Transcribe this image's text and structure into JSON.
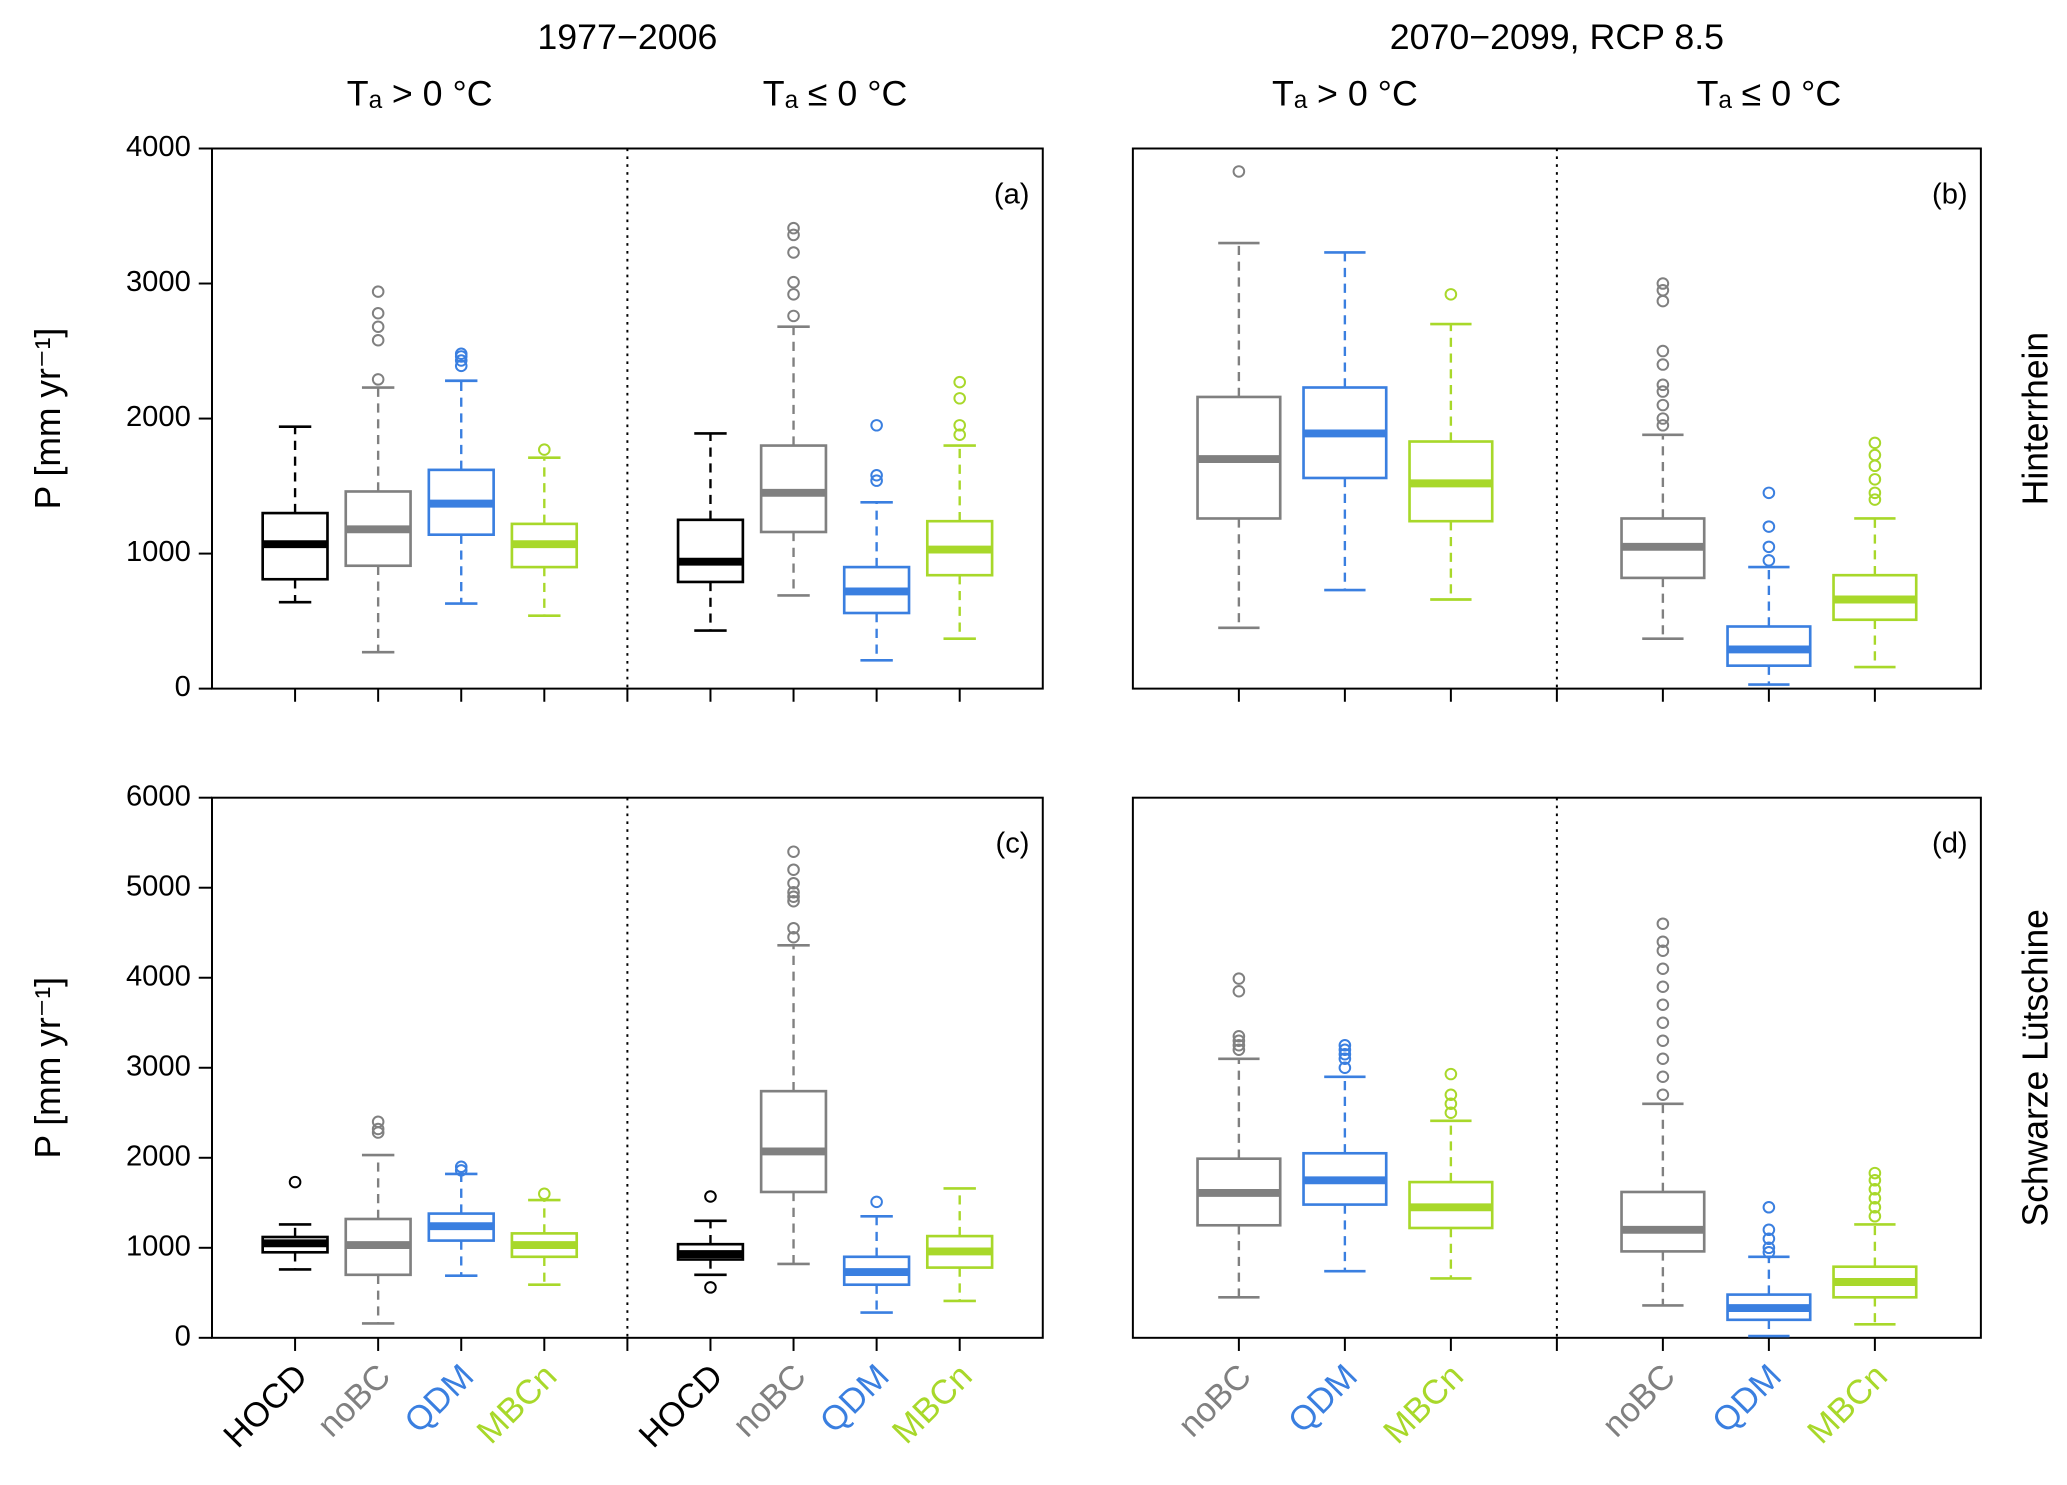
{
  "chart_data": [
    {
      "type": "box",
      "title": "1977−2006",
      "ylabel": "P [mm yr⁻¹]",
      "panel_label": "(a)",
      "ylim": [
        0,
        4000
      ],
      "yticks": [
        0,
        1000,
        2000,
        3000,
        4000
      ],
      "groups": [
        {
          "label": "Tₐ > 0 °C",
          "boxes": [
            {
              "color": "#000000",
              "whisker_low": 640,
              "q1": 810,
              "median": 1070,
              "q3": 1300,
              "whisker_high": 1940,
              "outliers": []
            },
            {
              "color": "#808080",
              "whisker_low": 270,
              "q1": 910,
              "median": 1180,
              "q3": 1460,
              "whisker_high": 2230,
              "outliers": [
                2290,
                2580,
                2680,
                2780,
                2940
              ]
            },
            {
              "color": "#3a7fe0",
              "whisker_low": 630,
              "q1": 1140,
              "median": 1370,
              "q3": 1620,
              "whisker_high": 2280,
              "outliers": [
                2390,
                2430,
                2460,
                2480
              ]
            },
            {
              "color": "#a8d82a",
              "whisker_low": 540,
              "q1": 900,
              "median": 1070,
              "q3": 1220,
              "whisker_high": 1710,
              "outliers": [
                1770
              ]
            }
          ]
        },
        {
          "label": "Tₐ ≤ 0 °C",
          "boxes": [
            {
              "color": "#000000",
              "whisker_low": 430,
              "q1": 790,
              "median": 940,
              "q3": 1250,
              "whisker_high": 1890,
              "outliers": []
            },
            {
              "color": "#808080",
              "whisker_low": 690,
              "q1": 1160,
              "median": 1450,
              "q3": 1800,
              "whisker_high": 2680,
              "outliers": [
                2760,
                2920,
                3010,
                3230,
                3360,
                3410
              ]
            },
            {
              "color": "#3a7fe0",
              "whisker_low": 210,
              "q1": 560,
              "median": 720,
              "q3": 900,
              "whisker_high": 1380,
              "outliers": [
                1540,
                1580,
                1950
              ]
            },
            {
              "color": "#a8d82a",
              "whisker_low": 370,
              "q1": 840,
              "median": 1030,
              "q3": 1240,
              "whisker_high": 1800,
              "outliers": [
                1880,
                1950,
                2150,
                2270
              ]
            }
          ]
        }
      ]
    },
    {
      "type": "box",
      "title": "2070−2099, RCP 8.5",
      "row_label": "Hinterrhein",
      "panel_label": "(b)",
      "ylim": [
        0,
        4000
      ],
      "groups": [
        {
          "label": "Tₐ > 0 °C",
          "boxes": [
            {
              "color": "#808080",
              "whisker_low": 450,
              "q1": 1260,
              "median": 1700,
              "q3": 2160,
              "whisker_high": 3300,
              "outliers": [
                3830
              ]
            },
            {
              "color": "#3a7fe0",
              "whisker_low": 730,
              "q1": 1560,
              "median": 1890,
              "q3": 2230,
              "whisker_high": 3230,
              "outliers": []
            },
            {
              "color": "#a8d82a",
              "whisker_low": 660,
              "q1": 1240,
              "median": 1520,
              "q3": 1830,
              "whisker_high": 2700,
              "outliers": [
                2920
              ]
            }
          ]
        },
        {
          "label": "Tₐ ≤ 0 °C",
          "boxes": [
            {
              "color": "#808080",
              "whisker_low": 370,
              "q1": 820,
              "median": 1050,
              "q3": 1260,
              "whisker_high": 1880,
              "outliers": [
                1950,
                2000,
                2100,
                2200,
                2250,
                2400,
                2500,
                2870,
                2950,
                3000
              ]
            },
            {
              "color": "#3a7fe0",
              "whisker_low": 30,
              "q1": 170,
              "median": 290,
              "q3": 460,
              "whisker_high": 900,
              "outliers": [
                950,
                1050,
                1200,
                1450
              ]
            },
            {
              "color": "#a8d82a",
              "whisker_low": 160,
              "q1": 510,
              "median": 660,
              "q3": 840,
              "whisker_high": 1260,
              "outliers": [
                1400,
                1450,
                1550,
                1650,
                1730,
                1820
              ]
            }
          ]
        }
      ]
    },
    {
      "type": "box",
      "ylabel": "P [mm yr⁻¹]",
      "panel_label": "(c)",
      "ylim": [
        0,
        6000
      ],
      "yticks": [
        0,
        1000,
        2000,
        3000,
        4000,
        5000,
        6000
      ],
      "groups": [
        {
          "boxes": [
            {
              "name": "HOCD",
              "color": "#000000",
              "whisker_low": 760,
              "q1": 950,
              "median": 1050,
              "q3": 1120,
              "whisker_high": 1260,
              "outliers": [
                1730
              ]
            },
            {
              "name": "noBC",
              "color": "#808080",
              "whisker_low": 160,
              "q1": 700,
              "median": 1030,
              "q3": 1320,
              "whisker_high": 2030,
              "outliers": [
                2280,
                2320,
                2400
              ]
            },
            {
              "name": "QDM",
              "color": "#3a7fe0",
              "whisker_low": 690,
              "q1": 1080,
              "median": 1240,
              "q3": 1380,
              "whisker_high": 1820,
              "outliers": [
                1860,
                1900
              ]
            },
            {
              "name": "MBCn",
              "color": "#a8d82a",
              "whisker_low": 590,
              "q1": 900,
              "median": 1030,
              "q3": 1160,
              "whisker_high": 1530,
              "outliers": [
                1600
              ]
            }
          ]
        },
        {
          "boxes": [
            {
              "name": "HOCD",
              "color": "#000000",
              "whisker_low": 700,
              "q1": 870,
              "median": 930,
              "q3": 1040,
              "whisker_high": 1300,
              "outliers": [
                560,
                1570
              ]
            },
            {
              "name": "noBC",
              "color": "#808080",
              "whisker_low": 820,
              "q1": 1620,
              "median": 2070,
              "q3": 2740,
              "whisker_high": 4360,
              "outliers": [
                4450,
                4550,
                4850,
                4900,
                4950,
                5050,
                5200,
                5400
              ]
            },
            {
              "name": "QDM",
              "color": "#3a7fe0",
              "whisker_low": 280,
              "q1": 590,
              "median": 730,
              "q3": 900,
              "whisker_high": 1350,
              "outliers": [
                1510
              ]
            },
            {
              "name": "MBCn",
              "color": "#a8d82a",
              "whisker_low": 410,
              "q1": 780,
              "median": 960,
              "q3": 1130,
              "whisker_high": 1660,
              "outliers": []
            }
          ]
        }
      ]
    },
    {
      "type": "box",
      "row_label": "Schwarze Lütschine",
      "panel_label": "(d)",
      "ylim": [
        0,
        6000
      ],
      "groups": [
        {
          "boxes": [
            {
              "name": "noBC",
              "color": "#808080",
              "whisker_low": 450,
              "q1": 1250,
              "median": 1610,
              "q3": 1990,
              "whisker_high": 3100,
              "outliers": [
                3200,
                3250,
                3300,
                3350,
                3850,
                3990
              ]
            },
            {
              "name": "QDM",
              "color": "#3a7fe0",
              "whisker_low": 740,
              "q1": 1480,
              "median": 1750,
              "q3": 2050,
              "whisker_high": 2900,
              "outliers": [
                3000,
                3100,
                3150,
                3200,
                3250
              ]
            },
            {
              "name": "MBCn",
              "color": "#a8d82a",
              "whisker_low": 660,
              "q1": 1220,
              "median": 1450,
              "q3": 1730,
              "whisker_high": 2410,
              "outliers": [
                2500,
                2600,
                2700,
                2930
              ]
            }
          ]
        },
        {
          "boxes": [
            {
              "name": "noBC",
              "color": "#808080",
              "whisker_low": 360,
              "q1": 960,
              "median": 1200,
              "q3": 1620,
              "whisker_high": 2600,
              "outliers": [
                2700,
                2900,
                3100,
                3300,
                3500,
                3700,
                3900,
                4100,
                4300,
                4400,
                4600
              ]
            },
            {
              "name": "QDM",
              "color": "#3a7fe0",
              "whisker_low": 20,
              "q1": 200,
              "median": 330,
              "q3": 480,
              "whisker_high": 900,
              "outliers": [
                950,
                1000,
                1100,
                1200,
                1450
              ]
            },
            {
              "name": "MBCn",
              "color": "#a8d82a",
              "whisker_low": 150,
              "q1": 450,
              "median": 620,
              "q3": 790,
              "whisker_high": 1260,
              "outliers": [
                1350,
                1450,
                1550,
                1650,
                1750,
                1830
              ]
            }
          ]
        }
      ]
    }
  ]
}
